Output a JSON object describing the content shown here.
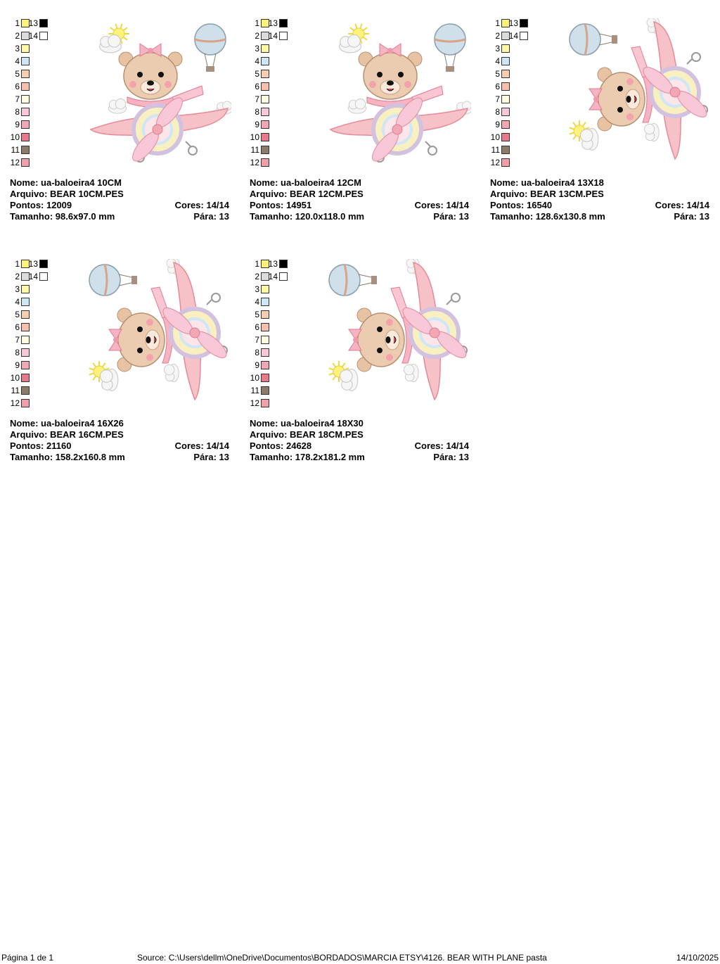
{
  "palette": [
    {
      "num": "1",
      "color": "#fff27a"
    },
    {
      "num": "2",
      "color": "#dcdcdc"
    },
    {
      "num": "3",
      "color": "#fff7a8"
    },
    {
      "num": "4",
      "color": "#cfe6f6"
    },
    {
      "num": "5",
      "color": "#f8cdb0"
    },
    {
      "num": "6",
      "color": "#f7bfae"
    },
    {
      "num": "7",
      "color": "#fffbe0"
    },
    {
      "num": "8",
      "color": "#f8c8d8"
    },
    {
      "num": "9",
      "color": "#f2a8b4"
    },
    {
      "num": "10",
      "color": "#e8798a"
    },
    {
      "num": "11",
      "color": "#8c7a6b"
    },
    {
      "num": "12",
      "color": "#f0a0a8"
    },
    {
      "num": "13",
      "color": "#000000"
    },
    {
      "num": "14",
      "color": "#ffffff"
    }
  ],
  "designs": [
    {
      "nome": "Nome: ua-baloeira4 10CM",
      "arquivo": "Arquivo: BEAR 10CM.PES",
      "pontos": "Pontos: 12009",
      "cores": "Cores: 14/14",
      "tamanho": "Tamanho: 98.6x97.0 mm",
      "para": "Pára: 13",
      "orientation": "upright"
    },
    {
      "nome": "Nome: ua-baloeira4 12CM",
      "arquivo": "Arquivo: BEAR 12CM.PES",
      "pontos": "Pontos: 14951",
      "cores": "Cores: 14/14",
      "tamanho": "Tamanho: 120.0x118.0 mm",
      "para": "Pára: 13",
      "orientation": "upright"
    },
    {
      "nome": "Nome: ua-baloeira4 13X18",
      "arquivo": "Arquivo: BEAR 13CM.PES",
      "pontos": "Pontos: 16540",
      "cores": "Cores: 14/14",
      "tamanho": "Tamanho: 128.6x130.8 mm",
      "para": "Pára: 13",
      "orientation": "rotated"
    },
    {
      "nome": "Nome: ua-baloeira4 16X26",
      "arquivo": "Arquivo: BEAR 16CM.PES",
      "pontos": "Pontos: 21160",
      "cores": "Cores: 14/14",
      "tamanho": "Tamanho: 158.2x160.8 mm",
      "para": "Pára: 13",
      "orientation": "rotated"
    },
    {
      "nome": "Nome: ua-baloeira4 18X30",
      "arquivo": "Arquivo: BEAR 18CM.PES",
      "pontos": "Pontos: 24628",
      "cores": "Cores: 14/14",
      "tamanho": "Tamanho: 178.2x181.2 mm",
      "para": "Pára: 13",
      "orientation": "rotated"
    }
  ],
  "footer": {
    "page": "Página 1 de 1",
    "source": "Source: C:\\Users\\dellm\\OneDrive\\Documentos\\BORDADOS\\MARCIA ETSY\\4126. BEAR WITH PLANE pasta",
    "date": "14/10/2025"
  }
}
